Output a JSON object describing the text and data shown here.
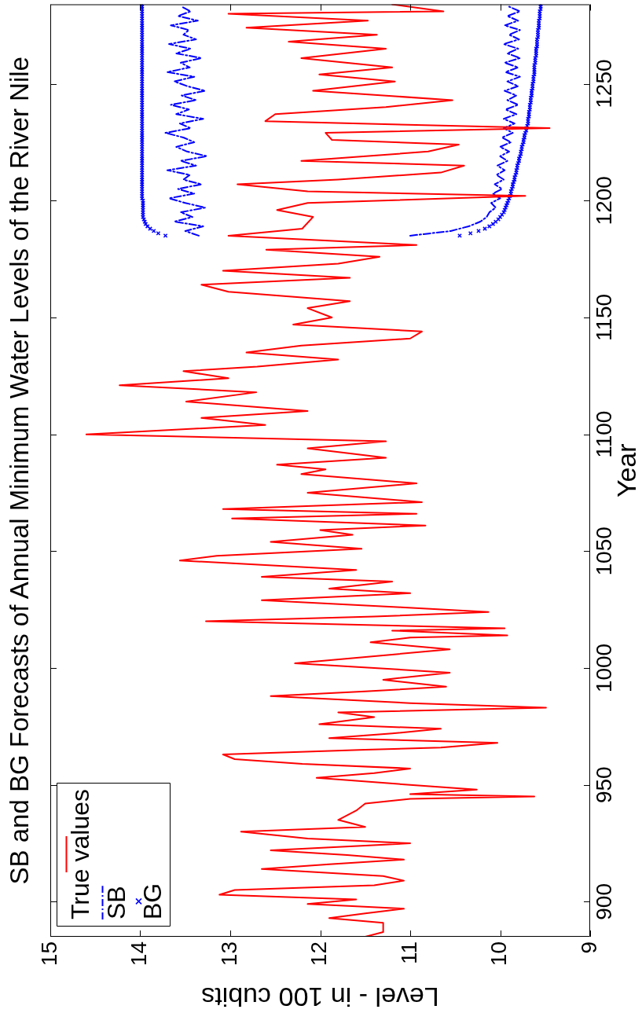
{
  "chart_data": {
    "type": "line",
    "title": "SB and BG Forecasts of Annual Minimum Water Levels of the River Nile",
    "xlabel": "Level - in 100 cubits",
    "ylabel": "Year",
    "orientation": "horizontal",
    "xlim": [
      15,
      9
    ],
    "xticks": [
      15,
      14,
      13,
      12,
      11,
      10,
      9
    ],
    "ylim": [
      885,
      1284
    ],
    "yticks": [
      900,
      950,
      1000,
      1050,
      1100,
      1150,
      1200,
      1250
    ],
    "legend": "bottom left",
    "series": [
      {
        "name": "True values",
        "color": "#ff0000",
        "x": [
          885,
          887,
          891,
          893,
          895,
          897,
          899,
          901,
          903,
          905,
          907,
          909,
          911,
          914,
          916,
          918,
          920,
          922,
          925,
          927,
          930,
          932,
          935,
          939,
          942,
          944,
          945,
          946,
          948,
          950,
          953,
          955,
          957,
          959,
          961,
          963,
          965,
          966,
          968,
          970,
          972,
          974,
          976,
          979,
          981,
          983,
          985,
          988,
          990,
          992,
          995,
          998,
          1000,
          1002,
          1008,
          1011,
          1013,
          1014,
          1016,
          1017,
          1020,
          1022,
          1024,
          1026,
          1029,
          1032,
          1034,
          1037,
          1039,
          1042,
          1046,
          1048,
          1051,
          1054,
          1057,
          1059,
          1061,
          1064,
          1066,
          1068,
          1071,
          1075,
          1079,
          1083,
          1085,
          1087,
          1090,
          1094,
          1097,
          1100,
          1104,
          1107,
          1110,
          1114,
          1118,
          1121,
          1124,
          1127,
          1129,
          1132,
          1135,
          1138,
          1141,
          1144,
          1147,
          1150,
          1154,
          1157,
          1161,
          1164,
          1167,
          1170,
          1173,
          1176,
          1179,
          1181,
          1185,
          1188,
          1193,
          1196,
          1199,
          1202,
          1204,
          1207,
          1209,
          1212,
          1215,
          1217,
          1221,
          1224,
          1226,
          1229,
          1231,
          1234,
          1237,
          1240,
          1243,
          1247,
          1251,
          1254,
          1257,
          1261,
          1265,
          1268,
          1271,
          1274,
          1277,
          1280,
          1281,
          1284
        ],
        "values": [
          11.5,
          11.3,
          11.3,
          11.9,
          11.5,
          11.07,
          12.14,
          11.6,
          13.12,
          12.95,
          11.4,
          11.07,
          11.3,
          12.65,
          11.9,
          11.07,
          11.7,
          12.55,
          11.0,
          12.14,
          12.88,
          11.5,
          11.8,
          11.6,
          11.5,
          11.0,
          9.62,
          11.0,
          10.26,
          11.0,
          12.04,
          11.4,
          11.0,
          12.2,
          12.95,
          13.08,
          11.5,
          10.66,
          10.03,
          11.9,
          11.2,
          10.66,
          12.01,
          11.4,
          11.8,
          9.49,
          11.0,
          12.55,
          11.5,
          10.6,
          11.3,
          10.56,
          11.4,
          12.28,
          10.56,
          11.44,
          11.0,
          9.92,
          11.2,
          9.95,
          13.27,
          11.4,
          10.13,
          11.1,
          12.65,
          11.0,
          11.9,
          11.2,
          12.65,
          11.6,
          13.56,
          13.15,
          11.54,
          12.55,
          11.64,
          12.0,
          10.83,
          12.98,
          10.93,
          13.08,
          10.87,
          12.14,
          10.93,
          12.21,
          11.94,
          12.48,
          11.27,
          12.14,
          11.27,
          14.6,
          12.61,
          13.32,
          12.14,
          13.49,
          12.71,
          14.23,
          13.02,
          13.52,
          12.7,
          11.8,
          12.82,
          12.21,
          11.0,
          10.87,
          12.3,
          11.87,
          12.14,
          11.67,
          13.02,
          13.32,
          11.67,
          13.08,
          11.8,
          11.34,
          12.6,
          10.93,
          13.02,
          12.2,
          12.08,
          12.48,
          12.14,
          9.72,
          12.14,
          12.92,
          11.8,
          10.66,
          10.4,
          12.21,
          10.8,
          10.46,
          11.87,
          11.94,
          9.45,
          12.61,
          12.5,
          11.27,
          10.53,
          12.08,
          11.17,
          12.01,
          11.2,
          12.21,
          11.27,
          12.35,
          11.37,
          12.82,
          11.47,
          13.02,
          10.63,
          11.2
        ]
      },
      {
        "name": "SB",
        "line_style": "dashed",
        "color": "#0000ff",
        "x": [
          1185,
          1187,
          1189,
          1191,
          1193,
          1195,
          1197,
          1199,
          1201,
          1203,
          1205,
          1207,
          1209,
          1211,
          1213,
          1215,
          1217,
          1219,
          1221,
          1223,
          1225,
          1227,
          1229,
          1231,
          1233,
          1235,
          1237,
          1239,
          1241,
          1243,
          1245,
          1247,
          1249,
          1251,
          1253,
          1255,
          1257,
          1259,
          1261,
          1263,
          1265,
          1267,
          1269,
          1271,
          1273,
          1275,
          1277,
          1279,
          1281,
          1283
        ],
        "values": [
          13.35,
          13.5,
          13.3,
          13.62,
          13.42,
          13.55,
          13.28,
          13.5,
          13.68,
          13.4,
          13.58,
          13.32,
          13.52,
          13.45,
          13.7,
          13.38,
          13.55,
          13.26,
          13.48,
          13.6,
          13.4,
          13.52,
          13.72,
          13.44,
          13.56,
          13.3,
          13.6,
          13.46,
          13.66,
          13.38,
          13.54,
          13.28,
          13.48,
          13.62,
          13.4,
          13.7,
          13.45,
          13.55,
          13.32,
          13.6,
          13.44,
          13.68,
          13.38,
          13.52,
          13.46,
          13.66,
          13.36,
          13.58,
          13.44,
          13.54
        ]
      },
      {
        "line_style": "dashed",
        "color": "#0000ff",
        "x": [
          1185,
          1187,
          1189,
          1191,
          1193,
          1195,
          1197,
          1199,
          1201,
          1203,
          1205,
          1207,
          1209,
          1211,
          1213,
          1215,
          1217,
          1219,
          1221,
          1223,
          1225,
          1227,
          1229,
          1231,
          1233,
          1235,
          1237,
          1239,
          1241,
          1243,
          1245,
          1247,
          1249,
          1251,
          1253,
          1255,
          1257,
          1259,
          1261,
          1263,
          1265,
          1267,
          1269,
          1271,
          1273,
          1275,
          1277,
          1279,
          1281,
          1283
        ],
        "values": [
          11.0,
          10.55,
          10.35,
          10.22,
          10.15,
          10.12,
          10.05,
          10.1,
          10.0,
          10.08,
          9.98,
          10.06,
          9.96,
          10.04,
          9.95,
          10.03,
          9.92,
          10.0,
          9.9,
          10.0,
          9.88,
          9.98,
          9.86,
          9.96,
          9.84,
          9.96,
          9.82,
          9.94,
          9.8,
          9.92,
          9.82,
          9.95,
          9.8,
          9.92,
          9.78,
          9.94,
          9.8,
          9.95,
          9.78,
          9.92,
          9.8,
          9.96,
          9.79,
          9.9,
          9.78,
          9.95,
          9.8,
          9.92,
          9.78,
          9.9
        ]
      },
      {
        "name": "BG",
        "type": "scatter",
        "marker": "cross",
        "color": "#0000ff",
        "x": [
          1185,
          1186,
          1187,
          1188,
          1189,
          1190,
          1191,
          1192,
          1193,
          1194,
          1195,
          1196,
          1197,
          1198,
          1199,
          1200,
          1201,
          1202,
          1203,
          1204,
          1205,
          1206,
          1207,
          1208,
          1209,
          1210,
          1211,
          1212,
          1213,
          1214,
          1215,
          1216,
          1217,
          1218,
          1219,
          1220,
          1221,
          1222,
          1223,
          1224,
          1225,
          1226,
          1227,
          1228,
          1229,
          1230,
          1231,
          1232,
          1233,
          1234,
          1235,
          1236,
          1237,
          1238,
          1239,
          1240,
          1241,
          1242,
          1243,
          1244,
          1245,
          1246,
          1247,
          1248,
          1249,
          1250,
          1251,
          1252,
          1253,
          1254,
          1255,
          1256,
          1257,
          1258,
          1259,
          1260,
          1261,
          1262,
          1263,
          1264,
          1265,
          1266,
          1267,
          1268,
          1269,
          1270,
          1271,
          1272,
          1273,
          1274,
          1275,
          1276,
          1277,
          1278,
          1279,
          1280,
          1281,
          1282,
          1283,
          1284
        ],
        "values": [
          13.72,
          13.8,
          13.85,
          13.89,
          13.92,
          13.94,
          13.95,
          13.96,
          13.97,
          13.97,
          13.97,
          13.97,
          13.97,
          13.97,
          13.97,
          13.97,
          13.98,
          13.98,
          13.98,
          13.98,
          13.98,
          13.98,
          13.98,
          13.98,
          13.98,
          13.98,
          13.98,
          13.98,
          13.98,
          13.98,
          13.98,
          13.98,
          13.98,
          13.98,
          13.98,
          13.98,
          13.98,
          13.98,
          13.98,
          13.98,
          13.98,
          13.98,
          13.98,
          13.98,
          13.98,
          13.98,
          13.98,
          13.98,
          13.98,
          13.98,
          13.98,
          13.98,
          13.98,
          13.98,
          13.98,
          13.98,
          13.98,
          13.98,
          13.98,
          13.98,
          13.98,
          13.98,
          13.98,
          13.98,
          13.98,
          13.98,
          13.98,
          13.98,
          13.98,
          13.98,
          13.98,
          13.98,
          13.98,
          13.98,
          13.98,
          13.98,
          13.98,
          13.98,
          13.98,
          13.98,
          13.98,
          13.98,
          13.98,
          13.98,
          13.98,
          13.98,
          13.98,
          13.98,
          13.98,
          13.98,
          13.98,
          13.98,
          13.98,
          13.98,
          13.98,
          13.98,
          13.98,
          13.98,
          13.98,
          13.98
        ]
      },
      {
        "type": "scatter",
        "marker": "cross",
        "color": "#0000ff",
        "x": [
          1185,
          1186,
          1187,
          1188,
          1189,
          1190,
          1191,
          1192,
          1193,
          1194,
          1195,
          1196,
          1197,
          1198,
          1199,
          1200,
          1201,
          1202,
          1203,
          1204,
          1205,
          1206,
          1207,
          1208,
          1209,
          1210,
          1211,
          1212,
          1213,
          1214,
          1215,
          1216,
          1217,
          1218,
          1219,
          1220,
          1221,
          1222,
          1223,
          1224,
          1225,
          1226,
          1227,
          1228,
          1229,
          1230,
          1231,
          1232,
          1233,
          1234,
          1235,
          1236,
          1237,
          1238,
          1239,
          1240,
          1241,
          1242,
          1243,
          1244,
          1245,
          1246,
          1247,
          1248,
          1249,
          1250,
          1251,
          1252,
          1253,
          1254,
          1255,
          1256,
          1257,
          1258,
          1259,
          1260,
          1261,
          1262,
          1263,
          1264,
          1265,
          1266,
          1267,
          1268,
          1269,
          1270,
          1271,
          1272,
          1273,
          1274,
          1275,
          1276,
          1277,
          1278,
          1279,
          1280,
          1281,
          1282,
          1283,
          1284
        ],
        "values": [
          10.45,
          10.33,
          10.24,
          10.17,
          10.12,
          10.08,
          10.05,
          10.02,
          10.0,
          9.98,
          9.96,
          9.95,
          9.94,
          9.93,
          9.92,
          9.91,
          9.9,
          9.89,
          9.88,
          9.88,
          9.87,
          9.86,
          9.86,
          9.85,
          9.84,
          9.84,
          9.83,
          9.82,
          9.82,
          9.81,
          9.81,
          9.8,
          9.79,
          9.79,
          9.78,
          9.77,
          9.77,
          9.76,
          9.76,
          9.75,
          9.74,
          9.74,
          9.73,
          9.73,
          9.72,
          9.71,
          9.71,
          9.7,
          9.69,
          9.69,
          9.69,
          9.68,
          9.68,
          9.68,
          9.67,
          9.67,
          9.67,
          9.66,
          9.66,
          9.66,
          9.65,
          9.65,
          9.65,
          9.64,
          9.64,
          9.64,
          9.63,
          9.63,
          9.63,
          9.62,
          9.62,
          9.62,
          9.62,
          9.62,
          9.61,
          9.61,
          9.61,
          9.6,
          9.6,
          9.6,
          9.6,
          9.59,
          9.59,
          9.59,
          9.59,
          9.58,
          9.58,
          9.58,
          9.58,
          9.57,
          9.57,
          9.57,
          9.57,
          9.56,
          9.56,
          9.56,
          9.56,
          9.55,
          9.55,
          9.55
        ]
      }
    ]
  }
}
